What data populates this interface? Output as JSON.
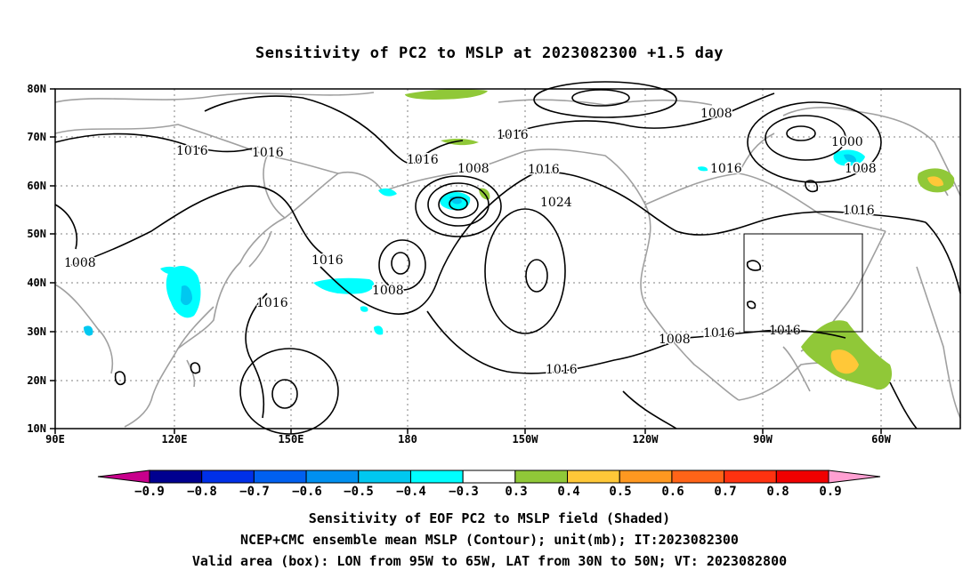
{
  "title": "Sensitivity of PC2 to MSLP at 2023082300 +1.5 day",
  "lat_labels": [
    "80N",
    "70N",
    "60N",
    "50N",
    "40N",
    "30N",
    "20N",
    "10N"
  ],
  "lon_labels": [
    "90E",
    "120E",
    "150E",
    "180",
    "150W",
    "120W",
    "90W",
    "60W"
  ],
  "contour_labels": [
    {
      "text": "1016",
      "role": "isobar"
    },
    {
      "text": "1016",
      "role": "isobar"
    },
    {
      "text": "1016",
      "role": "isobar"
    },
    {
      "text": "1008",
      "role": "isobar"
    },
    {
      "text": "1016",
      "role": "isobar"
    },
    {
      "text": "1024",
      "role": "isobar"
    },
    {
      "text": "1008",
      "role": "isobar"
    },
    {
      "text": "1016",
      "role": "isobar"
    },
    {
      "text": "1008",
      "role": "isobar"
    },
    {
      "text": "1000",
      "role": "isobar"
    },
    {
      "text": "1008",
      "role": "isobar"
    },
    {
      "text": "1016",
      "role": "isobar"
    },
    {
      "text": "1016",
      "role": "isobar"
    },
    {
      "text": "1008",
      "role": "isobar"
    },
    {
      "text": "1016",
      "role": "isobar"
    },
    {
      "text": "1008",
      "role": "isobar"
    },
    {
      "text": "1016",
      "role": "isobar"
    },
    {
      "text": "1016",
      "role": "isobar"
    },
    {
      "text": "1016",
      "role": "isobar"
    },
    {
      "text": "1016",
      "role": "isobar"
    }
  ],
  "colorbar": {
    "labels": [
      "−0.9",
      "−0.8",
      "−0.7",
      "−0.6",
      "−0.5",
      "−0.4",
      "−0.3",
      "0.3",
      "0.4",
      "0.5",
      "0.6",
      "0.7",
      "0.8",
      "0.9"
    ],
    "colors": [
      "#000090",
      "#0030e8",
      "#0060f0",
      "#0090f0",
      "#00c8f0",
      "#00ffff",
      "#ffffff",
      "#90c838",
      "#ffc838",
      "#ff9820",
      "#ff6418",
      "#ff3210",
      "#f00000"
    ],
    "low_arrow_color": "#c8008c",
    "high_arrow_color": "#ffa0d2"
  },
  "captions": [
    "Sensitivity of EOF PC2 to MSLP field (Shaded)",
    "NCEP+CMC ensemble mean MSLP (Contour); unit(mb); IT:2023082300",
    "Valid area (box): LON from 95W to 65W, LAT from 30N to 50N; VT: 2023082800"
  ],
  "colors": {
    "contour": "#000000",
    "coast": "#a0a0a0",
    "grid": "#808080",
    "neg_shade": "#00ffff",
    "neg_shade_strong": "#00c8f0",
    "pos_shade": "#90c838",
    "pos_shade_strong": "#ffc838"
  }
}
